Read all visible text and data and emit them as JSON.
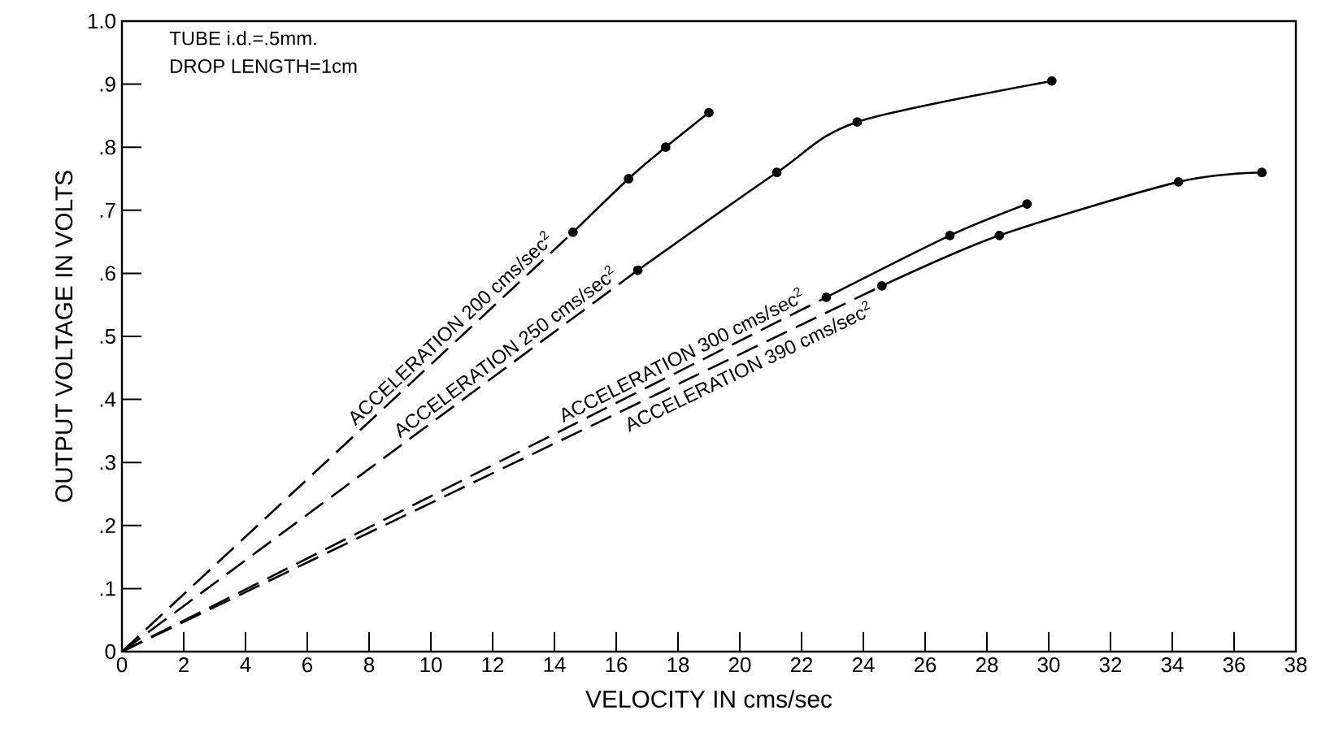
{
  "chart_data": {
    "type": "line",
    "xlabel": "VELOCITY IN cms/sec",
    "ylabel": "OUTPUT VOLTAGE IN VOLTS",
    "annotations": [
      "TUBE i.d.=.5mm.",
      "DROP LENGTH=1cm"
    ],
    "xlim": [
      0,
      38
    ],
    "ylim": [
      0,
      1.0
    ],
    "xticks": [
      0,
      2,
      4,
      6,
      8,
      10,
      12,
      14,
      16,
      18,
      20,
      22,
      24,
      26,
      28,
      30,
      32,
      34,
      36,
      38
    ],
    "yticks": [
      0,
      {
        "value": 0.1,
        "label": ".1"
      },
      {
        "value": 0.2,
        "label": ".2"
      },
      {
        "value": 0.3,
        "label": ".3"
      },
      {
        "value": 0.4,
        "label": ".4"
      },
      {
        "value": 0.5,
        "label": ".5"
      },
      {
        "value": 0.6,
        "label": ".6"
      },
      {
        "value": 0.7,
        "label": ".7"
      },
      {
        "value": 0.8,
        "label": ".8"
      },
      {
        "value": 0.9,
        "label": ".9"
      },
      {
        "value": 1.0,
        "label": "1.0"
      }
    ],
    "grid": false,
    "legend": false,
    "series": [
      {
        "color": "#000000",
        "line_style": "dashed",
        "x": [
          0,
          14.6
        ],
        "values": [
          0,
          0.665
        ]
      },
      {
        "name": "ACCELERATION  200 cms/sec$^{2}$",
        "color": "#000000",
        "line_style": "solid",
        "marker": "circle",
        "x": [
          14.6,
          16.4,
          17.6,
          19.0
        ],
        "values": [
          0.665,
          0.75,
          0.8,
          0.855
        ]
      },
      {
        "color": "#000000",
        "line_style": "dashed",
        "x": [
          0,
          16.7
        ],
        "values": [
          0,
          0.605
        ]
      },
      {
        "name": "ACCELERATION  250 cms/sec$^{2}$",
        "color": "#000000",
        "line_style": "solid",
        "marker": "circle",
        "x": [
          16.7,
          21.2,
          23.8,
          30.1
        ],
        "values": [
          0.605,
          0.76,
          0.84,
          0.905
        ]
      },
      {
        "color": "#000000",
        "line_style": "dashed",
        "x": [
          0,
          22.8
        ],
        "values": [
          0,
          0.562
        ]
      },
      {
        "name": "ACCELERATION  300 cms/sec$^{2}$",
        "color": "#000000",
        "line_style": "solid",
        "marker": "circle",
        "x": [
          22.8,
          26.8,
          29.3
        ],
        "values": [
          0.562,
          0.66,
          0.71
        ]
      },
      {
        "color": "#000000",
        "line_style": "dashed",
        "x": [
          0,
          24.6
        ],
        "values": [
          0,
          0.58
        ]
      },
      {
        "name": "ACCELERATION  390 cms/sec$^{2}$",
        "color": "#000000",
        "line_style": "solid",
        "marker": "circle",
        "x": [
          24.6,
          28.4,
          34.2,
          36.9
        ],
        "values": [
          0.58,
          0.66,
          0.745,
          0.76
        ]
      }
    ]
  }
}
